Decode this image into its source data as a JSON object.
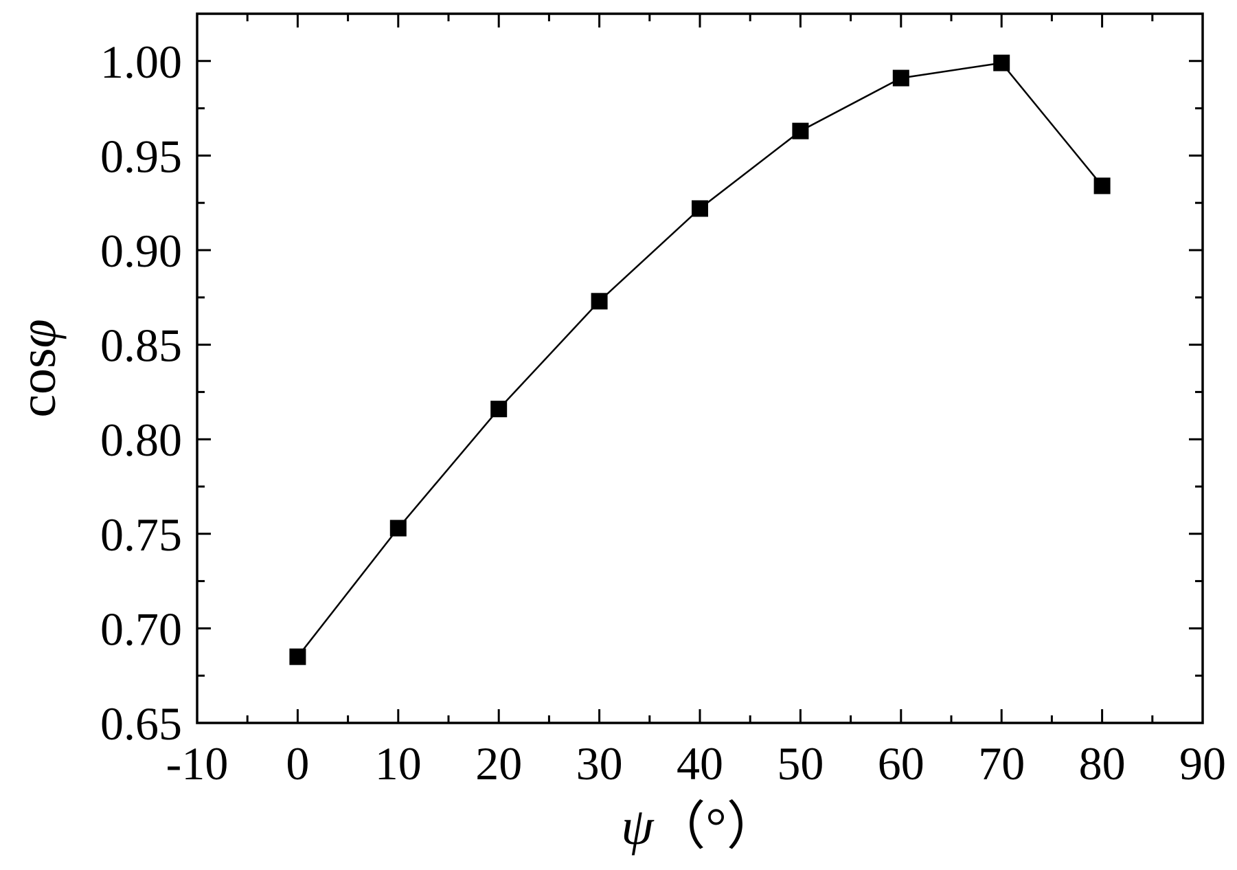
{
  "chart_data": {
    "type": "line",
    "title": "",
    "xlabel": {
      "symbol": "ψ",
      "unit": "（°）"
    },
    "ylabel": {
      "prefix": "cos",
      "symbol": "φ"
    },
    "xlim": [
      -10,
      90
    ],
    "ylim": [
      0.65,
      1.025
    ],
    "x_major_ticks": [
      -10,
      0,
      10,
      20,
      30,
      40,
      50,
      60,
      70,
      80,
      90
    ],
    "x_tick_labels": [
      "-10",
      "0",
      "10",
      "20",
      "30",
      "40",
      "50",
      "60",
      "70",
      "80",
      "90"
    ],
    "x_minor_ticks": [
      -5,
      5,
      15,
      25,
      35,
      45,
      55,
      65,
      75,
      85
    ],
    "y_major_ticks": [
      0.65,
      0.7,
      0.75,
      0.8,
      0.85,
      0.9,
      0.95,
      1.0
    ],
    "y_tick_labels": [
      "0.65",
      "0.70",
      "0.75",
      "0.80",
      "0.85",
      "0.90",
      "0.95",
      "1.00"
    ],
    "y_minor_ticks": [
      0.675,
      0.725,
      0.775,
      0.825,
      0.875,
      0.925,
      0.975
    ],
    "grid": false,
    "marker": "square",
    "color": "#000000",
    "series": [
      {
        "x": [
          0,
          10,
          20,
          30,
          40,
          50,
          60,
          70,
          80
        ],
        "y": [
          0.685,
          0.753,
          0.816,
          0.873,
          0.922,
          0.963,
          0.991,
          0.999,
          0.934
        ]
      }
    ]
  }
}
